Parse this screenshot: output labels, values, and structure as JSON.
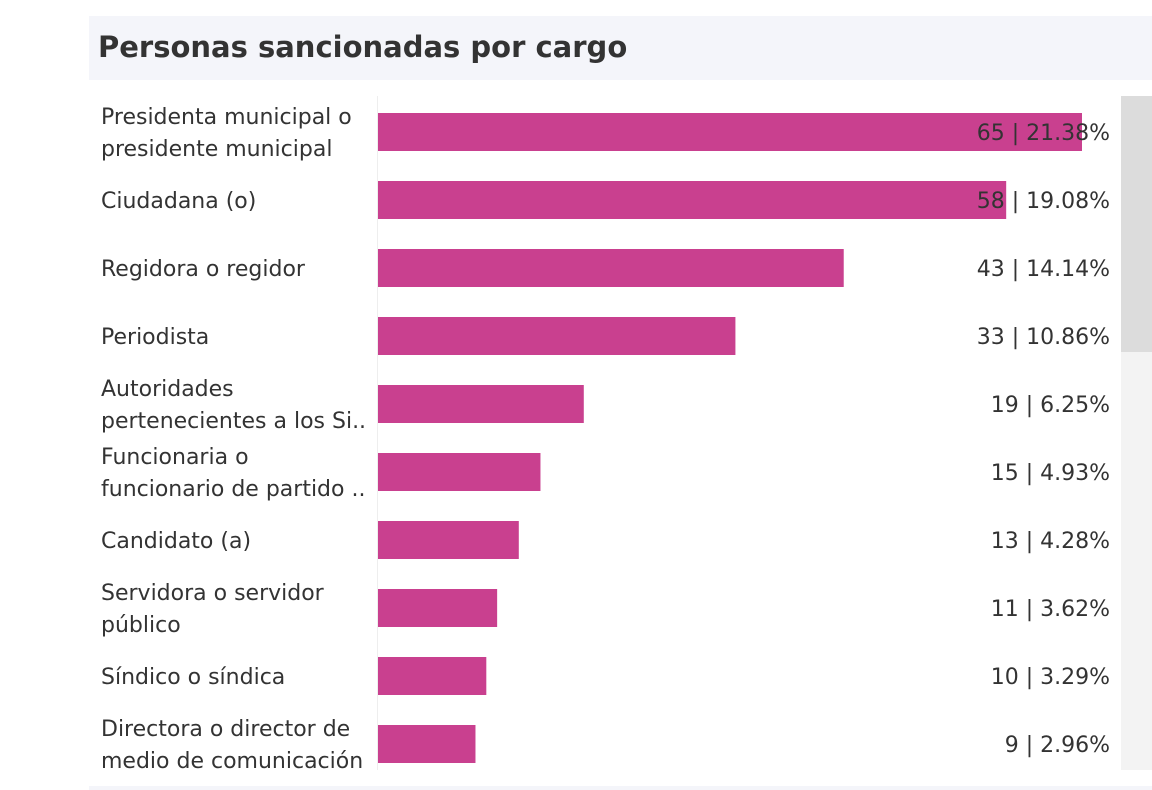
{
  "chart_data": {
    "type": "bar",
    "orientation": "horizontal",
    "title": "Personas sancionadas por cargo",
    "categories": [
      [
        "Presidenta municipal o",
        "presidente municipal"
      ],
      [
        "Ciudadana (o)"
      ],
      [
        "Regidora o regidor"
      ],
      [
        "Periodista"
      ],
      [
        "Autoridades",
        "pertenecientes a los Si.."
      ],
      [
        "Funcionaria o",
        "funcionario de partido .."
      ],
      [
        "Candidato (a)"
      ],
      [
        "Servidora o servidor",
        "público"
      ],
      [
        "Síndico o síndica"
      ],
      [
        "Directora o director de",
        "medio de comunicación"
      ]
    ],
    "values": [
      65,
      58,
      43,
      33,
      19,
      15,
      13,
      11,
      10,
      9
    ],
    "value_labels": [
      "65 | 21.38%",
      "58 | 19.08%",
      "43 | 14.14%",
      "33 | 10.86%",
      "19 | 6.25%",
      "15 | 4.93%",
      "13 | 4.28%",
      "11 | 3.62%",
      "10 | 3.29%",
      "9 | 2.96%"
    ],
    "bar_color": "#c9408f",
    "xlim": [
      0,
      65
    ],
    "grid": false,
    "legend": "none"
  }
}
